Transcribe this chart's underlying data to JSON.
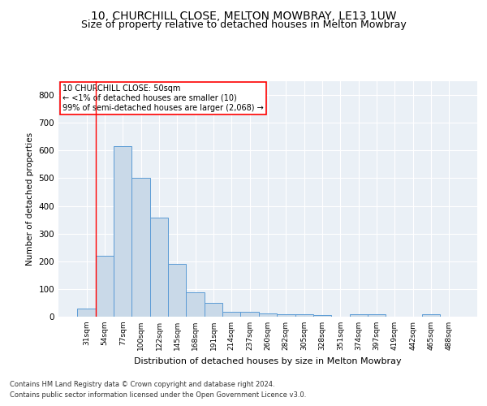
{
  "title1": "10, CHURCHILL CLOSE, MELTON MOWBRAY, LE13 1UW",
  "title2": "Size of property relative to detached houses in Melton Mowbray",
  "xlabel": "Distribution of detached houses by size in Melton Mowbray",
  "ylabel": "Number of detached properties",
  "categories": [
    "31sqm",
    "54sqm",
    "77sqm",
    "100sqm",
    "122sqm",
    "145sqm",
    "168sqm",
    "191sqm",
    "214sqm",
    "237sqm",
    "260sqm",
    "282sqm",
    "305sqm",
    "328sqm",
    "351sqm",
    "374sqm",
    "397sqm",
    "419sqm",
    "442sqm",
    "465sqm",
    "488sqm"
  ],
  "values": [
    28,
    220,
    615,
    500,
    358,
    190,
    88,
    50,
    18,
    18,
    13,
    8,
    8,
    5,
    0,
    8,
    8,
    0,
    0,
    8,
    0
  ],
  "bar_color": "#c9d9e8",
  "bar_edge_color": "#5b9bd5",
  "annotation_box_text": [
    "10 CHURCHILL CLOSE: 50sqm",
    "← <1% of detached houses are smaller (10)",
    "99% of semi-detached houses are larger (2,068) →"
  ],
  "ylim": [
    0,
    850
  ],
  "yticks": [
    0,
    100,
    200,
    300,
    400,
    500,
    600,
    700,
    800
  ],
  "footnote1": "Contains HM Land Registry data © Crown copyright and database right 2024.",
  "footnote2": "Contains public sector information licensed under the Open Government Licence v3.0.",
  "bg_color": "#eaf0f6",
  "grid_color": "#ffffff",
  "title1_fontsize": 10,
  "title2_fontsize": 9
}
